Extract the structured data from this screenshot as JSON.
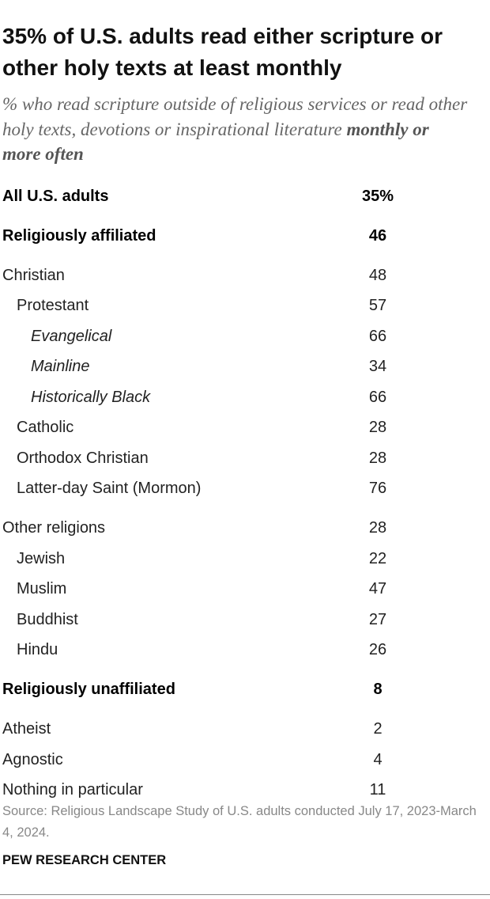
{
  "header": {
    "title": "35% of U.S. adults read either scripture or other holy texts at least monthly",
    "subtitle": {
      "text": "% who read scripture outside of religious services or read other holy texts, devotions or inspirational literature",
      "emphasis": "monthly or more often"
    }
  },
  "table": {
    "groups": [
      {
        "rows": [
          {
            "label": "All U.S. adults",
            "value": "35%",
            "level": 0,
            "style": "bold"
          }
        ]
      },
      {
        "rows": [
          {
            "label": "Religiously affiliated",
            "value": 46,
            "level": 0,
            "style": "bold"
          }
        ]
      },
      {
        "rows": [
          {
            "label": "Christian",
            "value": 48,
            "level": 0,
            "style": "normal"
          },
          {
            "label": "Protestant",
            "value": 57,
            "level": 1,
            "style": "normal"
          },
          {
            "label": "Evangelical",
            "value": 66,
            "level": 2,
            "style": "italic"
          },
          {
            "label": "Mainline",
            "value": 34,
            "level": 2,
            "style": "italic"
          },
          {
            "label": "Historically Black",
            "value": 66,
            "level": 2,
            "style": "italic"
          },
          {
            "label": "Catholic",
            "value": 28,
            "level": 1,
            "style": "normal"
          },
          {
            "label": "Orthodox Christian",
            "value": 28,
            "level": 1,
            "style": "normal"
          },
          {
            "label": "Latter-day Saint (Mormon)",
            "value": 76,
            "level": 1,
            "style": "normal"
          }
        ]
      },
      {
        "rows": [
          {
            "label": "Other religions",
            "value": 28,
            "level": 0,
            "style": "normal"
          },
          {
            "label": "Jewish",
            "value": 22,
            "level": 1,
            "style": "normal"
          },
          {
            "label": "Muslim",
            "value": 47,
            "level": 1,
            "style": "normal"
          },
          {
            "label": "Buddhist",
            "value": 27,
            "level": 1,
            "style": "normal"
          },
          {
            "label": "Hindu",
            "value": 26,
            "level": 1,
            "style": "normal"
          }
        ]
      },
      {
        "rows": [
          {
            "label": "Religiously unaffiliated",
            "value": 8,
            "level": 0,
            "style": "bold"
          }
        ]
      },
      {
        "rows": [
          {
            "label": "Atheist",
            "value": 2,
            "level": 0,
            "style": "normal"
          },
          {
            "label": "Agnostic",
            "value": 4,
            "level": 0,
            "style": "normal"
          },
          {
            "label": "Nothing in particular",
            "value": 11,
            "level": 0,
            "style": "normal"
          }
        ]
      }
    ]
  },
  "footer": {
    "source": "Source: Religious Landscape Study of U.S. adults conducted July 17, 2023-March 4, 2024.",
    "org": "PEW RESEARCH CENTER"
  }
}
